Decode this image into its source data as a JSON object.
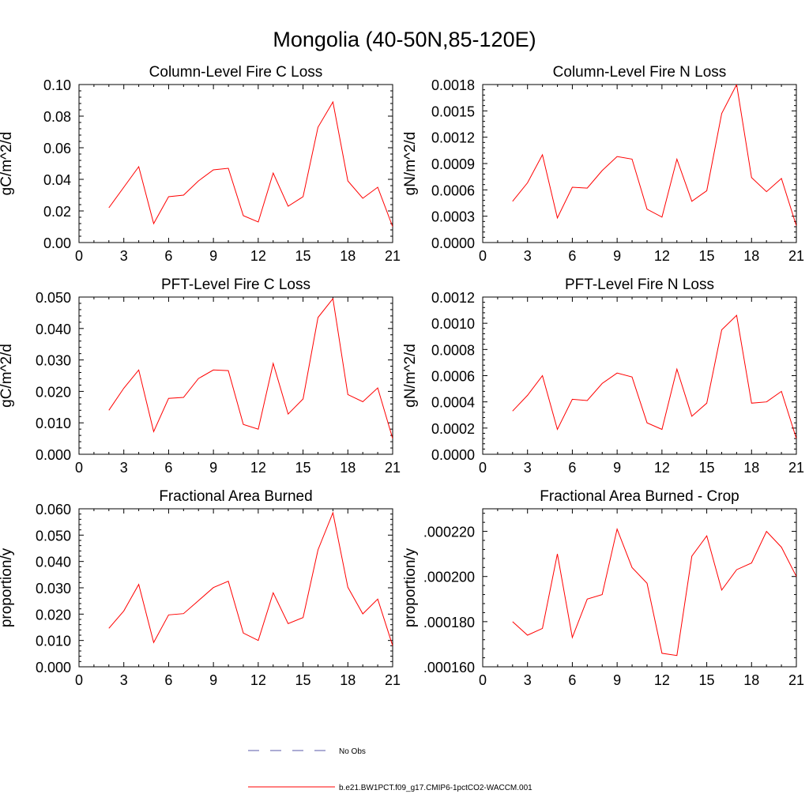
{
  "figure": {
    "title": "Mongolia (40-50N,85-120E)",
    "legend": {
      "placement": "bottom-center",
      "items": [
        {
          "label": "No Obs",
          "color": "#5a5aa8",
          "style": "dashed"
        },
        {
          "label": "b.e21.BW1PCT.f09_g17.CMIP6-1pctCO2-WACCM.001",
          "color": "#ff0000",
          "style": "solid"
        }
      ]
    }
  },
  "chart_data": [
    {
      "type": "line",
      "title": "Column-Level Fire C Loss",
      "xlabel": "",
      "ylabel": "gC/m^2/d",
      "xlim": [
        0,
        21
      ],
      "ylim": [
        0,
        0.1
      ],
      "x_ticks": [
        "0",
        "3",
        "6",
        "9",
        "12",
        "15",
        "18",
        "21"
      ],
      "y_ticks": [
        "0.00",
        "0.02",
        "0.04",
        "0.06",
        "0.08",
        "0.10"
      ],
      "grid": false,
      "series": [
        {
          "color": "#ff0000",
          "x": [
            2,
            3,
            4,
            5,
            6,
            7,
            8,
            9,
            10,
            11,
            12,
            13,
            14,
            15,
            16,
            17,
            18,
            19,
            20,
            21
          ],
          "y": [
            0.022,
            0.035,
            0.048,
            0.012,
            0.029,
            0.03,
            0.039,
            0.046,
            0.047,
            0.017,
            0.013,
            0.044,
            0.023,
            0.029,
            0.073,
            0.089,
            0.039,
            0.028,
            0.035,
            0.01
          ]
        }
      ]
    },
    {
      "type": "line",
      "title": "Column-Level Fire N Loss",
      "xlabel": "",
      "ylabel": "gN/m^2/d",
      "xlim": [
        0,
        21
      ],
      "ylim": [
        0,
        0.0018
      ],
      "x_ticks": [
        "0",
        "3",
        "6",
        "9",
        "12",
        "15",
        "18",
        "21"
      ],
      "y_ticks": [
        "0.0000",
        "0.0003",
        "0.0006",
        "0.0009",
        "0.0012",
        "0.0015",
        "0.0018"
      ],
      "grid": false,
      "series": [
        {
          "color": "#ff0000",
          "x": [
            2,
            3,
            4,
            5,
            6,
            7,
            8,
            9,
            10,
            11,
            12,
            13,
            14,
            15,
            16,
            17,
            18,
            19,
            20,
            21
          ],
          "y": [
            0.00047,
            0.00068,
            0.001,
            0.00028,
            0.00063,
            0.00062,
            0.00082,
            0.00098,
            0.00095,
            0.00038,
            0.00029,
            0.00095,
            0.00047,
            0.00059,
            0.00147,
            0.0018,
            0.00074,
            0.00058,
            0.00073,
            0.00019
          ]
        }
      ]
    },
    {
      "type": "line",
      "title": "PFT-Level Fire C Loss",
      "xlabel": "",
      "ylabel": "gC/m^2/d",
      "xlim": [
        0,
        21
      ],
      "ylim": [
        0,
        0.05
      ],
      "x_ticks": [
        "0",
        "3",
        "6",
        "9",
        "12",
        "15",
        "18",
        "21"
      ],
      "y_ticks": [
        "0.000",
        "0.010",
        "0.020",
        "0.030",
        "0.040",
        "0.050"
      ],
      "grid": false,
      "series": [
        {
          "color": "#ff0000",
          "x": [
            2,
            3,
            4,
            5,
            6,
            7,
            8,
            9,
            10,
            11,
            12,
            13,
            14,
            15,
            16,
            17,
            18,
            19,
            20,
            21
          ],
          "y": [
            0.014,
            0.021,
            0.0268,
            0.0072,
            0.0178,
            0.0181,
            0.0241,
            0.0268,
            0.0266,
            0.0095,
            0.008,
            0.0289,
            0.0128,
            0.0176,
            0.0435,
            0.0495,
            0.019,
            0.0167,
            0.0211,
            0.005
          ]
        }
      ]
    },
    {
      "type": "line",
      "title": "PFT-Level Fire N Loss",
      "xlabel": "",
      "ylabel": "gN/m^2/d",
      "xlim": [
        0,
        21
      ],
      "ylim": [
        0,
        0.0012
      ],
      "x_ticks": [
        "0",
        "3",
        "6",
        "9",
        "12",
        "15",
        "18",
        "21"
      ],
      "y_ticks": [
        "0.0000",
        "0.0002",
        "0.0004",
        "0.0006",
        "0.0008",
        "0.0010",
        "0.0012"
      ],
      "grid": false,
      "series": [
        {
          "color": "#ff0000",
          "x": [
            2,
            3,
            4,
            5,
            6,
            7,
            8,
            9,
            10,
            11,
            12,
            13,
            14,
            15,
            16,
            17,
            18,
            19,
            20,
            21
          ],
          "y": [
            0.00033,
            0.00045,
            0.0006,
            0.00019,
            0.00042,
            0.00041,
            0.00054,
            0.00062,
            0.00059,
            0.00024,
            0.00019,
            0.00065,
            0.00029,
            0.00039,
            0.00095,
            0.00106,
            0.00039,
            0.0004,
            0.00048,
            0.00012
          ]
        }
      ]
    },
    {
      "type": "line",
      "title": "Fractional Area Burned",
      "xlabel": "",
      "ylabel": "proportion/y",
      "xlim": [
        0,
        21
      ],
      "ylim": [
        0,
        0.06
      ],
      "x_ticks": [
        "0",
        "3",
        "6",
        "9",
        "12",
        "15",
        "18",
        "21"
      ],
      "y_ticks": [
        "0.000",
        "0.010",
        "0.020",
        "0.030",
        "0.040",
        "0.050",
        "0.060"
      ],
      "grid": false,
      "series": [
        {
          "color": "#ff0000",
          "x": [
            2,
            3,
            4,
            5,
            6,
            7,
            8,
            9,
            10,
            11,
            12,
            13,
            14,
            15,
            16,
            17,
            18,
            19,
            20,
            21
          ],
          "y": [
            0.0146,
            0.0212,
            0.0313,
            0.0092,
            0.0197,
            0.0202,
            0.0251,
            0.0301,
            0.0325,
            0.0128,
            0.01,
            0.0281,
            0.0164,
            0.0187,
            0.0444,
            0.0585,
            0.0302,
            0.0201,
            0.0257,
            0.008
          ]
        }
      ]
    },
    {
      "type": "line",
      "title": "Fractional Area Burned - Crop",
      "xlabel": "",
      "ylabel": "proportion/y",
      "xlim": [
        0,
        21
      ],
      "ylim": [
        0.00016,
        0.00023
      ],
      "x_ticks": [
        "0",
        "3",
        "6",
        "9",
        "12",
        "15",
        "18",
        "21"
      ],
      "y_ticks": [
        ".000160",
        ".000180",
        ".000200",
        ".000220"
      ],
      "y_tick_values": [
        0.00016,
        0.00018,
        0.0002,
        0.00022
      ],
      "grid": false,
      "series": [
        {
          "color": "#ff0000",
          "x": [
            2,
            3,
            4,
            5,
            6,
            7,
            8,
            9,
            10,
            11,
            12,
            13,
            14,
            15,
            16,
            17,
            18,
            19,
            20,
            21
          ],
          "y": [
            0.00018,
            0.000174,
            0.000177,
            0.00021,
            0.000173,
            0.00019,
            0.000192,
            0.000221,
            0.000204,
            0.000197,
            0.000166,
            0.000165,
            0.000209,
            0.000218,
            0.000194,
            0.000203,
            0.000206,
            0.00022,
            0.000213,
            0.0002
          ]
        }
      ]
    }
  ]
}
